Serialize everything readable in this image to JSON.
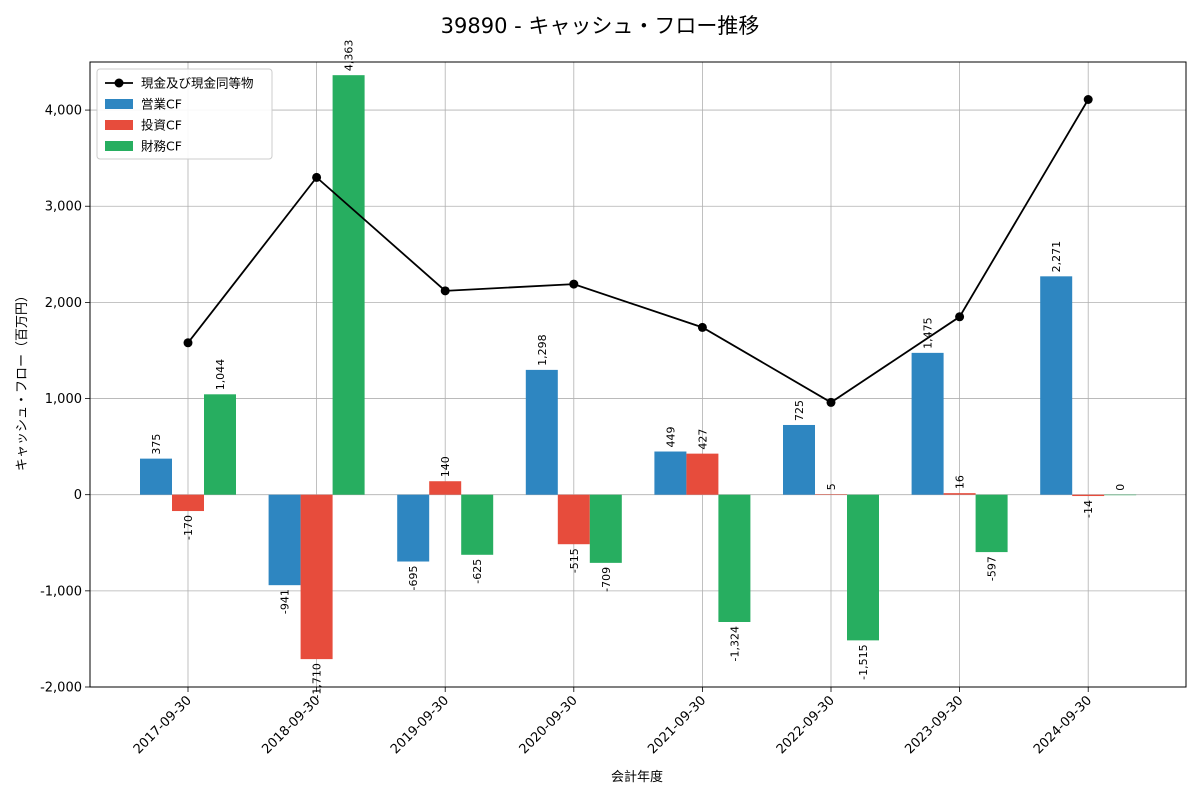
{
  "chart_data": {
    "type": "bar",
    "title": "39890 - キャッシュ・フロー推移",
    "xlabel": "会計年度",
    "ylabel": "キャッシュ・フロー（百万円）",
    "ylim": [
      -2000,
      4500
    ],
    "yticks": [
      -2000,
      -1000,
      0,
      1000,
      2000,
      3000,
      4000
    ],
    "ytick_labels": [
      "-2,000",
      "-1,000",
      "0",
      "1,000",
      "2,000",
      "3,000",
      "4,000"
    ],
    "grid": true,
    "legend_position": "top-left",
    "categories": [
      "2017-09-30",
      "2018-09-30",
      "2019-09-30",
      "2020-09-30",
      "2021-09-30",
      "2022-09-30",
      "2023-09-30",
      "2024-09-30"
    ],
    "series": [
      {
        "name": "営業CF",
        "kind": "bar",
        "color": "#2e86c1",
        "values": [
          375,
          -941,
          -695,
          1298,
          449,
          725,
          1475,
          2271
        ],
        "labels": [
          "375",
          "-941",
          "-695",
          "1,298",
          "449",
          "725",
          "1,475",
          "2,271"
        ]
      },
      {
        "name": "投資CF",
        "kind": "bar",
        "color": "#e74c3c",
        "values": [
          -170,
          -1710,
          140,
          -515,
          427,
          5,
          16,
          -14
        ],
        "labels": [
          "-170",
          "-1,710",
          "140",
          "-515",
          "427",
          "5",
          "16",
          "-14"
        ]
      },
      {
        "name": "財務CF",
        "kind": "bar",
        "color": "#27ae60",
        "values": [
          1044,
          4363,
          -625,
          -709,
          -1324,
          -1515,
          -597,
          0
        ],
        "labels": [
          "1,044",
          "4,363",
          "-625",
          "-709",
          "-1,324",
          "-1,515",
          "-597",
          "0"
        ]
      }
    ],
    "line_series": {
      "name": "現金及び現金同等物",
      "kind": "line",
      "color": "#000000",
      "values": [
        1580,
        3300,
        2120,
        2190,
        1740,
        960,
        1850,
        4110
      ]
    }
  }
}
